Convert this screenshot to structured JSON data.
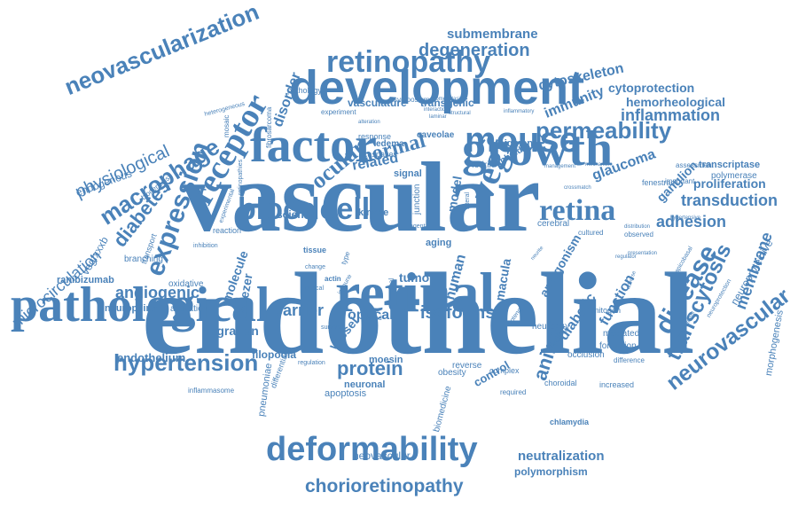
{
  "color": "#4a82b9",
  "words": [
    "endothelial",
    "vascular",
    "retinal",
    "pathological",
    "neovascularization",
    "development",
    "factor",
    "growth",
    "bloodcell",
    "retinopathy",
    "mouse",
    "permeability",
    "retina",
    "deformability",
    "hypertension",
    "chorioretinopathy",
    "receptor",
    "macrophage",
    "expression",
    "diabetes",
    "physiological",
    "microcirculation",
    "vegf",
    "neurovascular",
    "transcytosis",
    "disease",
    "membrane",
    "transduction",
    "inflammation",
    "degeneration",
    "submembrane",
    "cytoskeleton",
    "cytoprotection",
    "hemorheological",
    "angiogenic",
    "protein",
    "isoforms",
    "animal",
    "neutralization",
    "polymorphism",
    "neovascular",
    "adhesion",
    "proliferation",
    "ganglion",
    "glaucoma",
    "immunity",
    "ocular",
    "normal",
    "related",
    "disorder",
    "barrier",
    "optical",
    "tumor",
    "human",
    "model",
    "endothelium",
    "filopodia",
    "migration",
    "neuropilins",
    "ranibizumab",
    "diabetic",
    "function",
    "mediated",
    "formation",
    "occlusion",
    "control",
    "apoptosis",
    "vasculature",
    "transgenic",
    "pathology",
    "endogenous",
    "science",
    "tweezer",
    "molecule",
    "neuroprotective",
    "morphogenesis",
    "chlamydia",
    "macula",
    "antagonism",
    "increased",
    "choroidal",
    "aging",
    "edema",
    "caveolae",
    "pigment",
    "signal",
    "kinase",
    "junction",
    "vessel",
    "oxidative",
    "activation",
    "branching",
    "transport",
    "reaction",
    "inhibition",
    "vegfxxxb",
    "mitogen",
    "transcriptase",
    "polymerase",
    "fenestrae",
    "cultured",
    "observed",
    "moesin",
    "neuronal",
    "obesity",
    "required",
    "reverse",
    "complex",
    "biomedicine",
    "pneumoniae",
    "inflammasome",
    "differential",
    "mosaic",
    "cerebral",
    "fodrin",
    "inbred",
    "symposium",
    "experiment",
    "response",
    "caspases",
    "biogenesis",
    "fibrosarcoma",
    "heterogeneous",
    "experimental",
    "retinopathies",
    "immune",
    "neuron",
    "rheology",
    "difference",
    "management",
    "hypertensive",
    "alteration",
    "homeostasis",
    "laminar",
    "interaction",
    "structural",
    "inflammatory",
    "international",
    "neuroprotection",
    "regulation",
    "survival",
    "clinical",
    "change",
    "actin",
    "dual",
    "ligand",
    "tissue",
    "potency",
    "type",
    "agent",
    "lateral",
    "important",
    "assessment",
    "distribution",
    "mechanism",
    "crossmatch",
    "apicobasal",
    "regulator",
    "neurite",
    "adverse",
    "presentation"
  ]
}
